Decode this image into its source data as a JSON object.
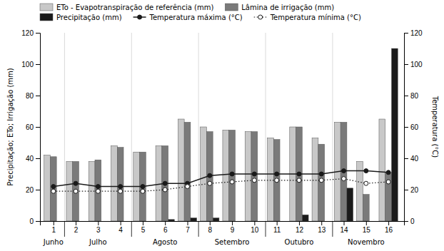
{
  "chart_data": {
    "type": "bar",
    "x": [
      1,
      2,
      3,
      4,
      5,
      6,
      7,
      8,
      9,
      10,
      11,
      12,
      13,
      14,
      15,
      16
    ],
    "xlim": [
      0.4,
      16.7
    ],
    "xticks": [
      1,
      2,
      3,
      4,
      5,
      6,
      7,
      8,
      9,
      10,
      11,
      12,
      13,
      14,
      15,
      16
    ],
    "ylabel": "Precipitação; ETo; Irrigação (mm)",
    "y2label": "Temperatura (°C)",
    "ylim": [
      0,
      120
    ],
    "yticks": [
      0,
      20,
      40,
      60,
      80,
      100,
      120
    ],
    "y2lim": [
      0,
      120
    ],
    "y2ticks": [
      0,
      20,
      40,
      60,
      80,
      100,
      120
    ],
    "grid": false,
    "legend": "top",
    "series": [
      {
        "name": "ETo - Evapotranspiração de referência (mm)",
        "type": "bar",
        "color": "#c8c8c8",
        "values": [
          42,
          38,
          38,
          48,
          44,
          48,
          65,
          60,
          58,
          57,
          53,
          60,
          53,
          63,
          38,
          65
        ]
      },
      {
        "name": "Lâmina de irrigação (mm)",
        "type": "bar",
        "color": "#7a7a7a",
        "values": [
          41,
          38,
          39,
          47,
          44,
          48,
          63,
          57,
          58,
          57,
          52,
          60,
          49,
          63,
          17,
          31
        ]
      },
      {
        "name": "Precipitação (mm)",
        "type": "bar",
        "color": "#1a1a1a",
        "values": [
          0,
          0,
          0,
          0,
          0,
          1,
          2,
          2,
          0,
          0,
          0,
          4,
          0,
          21,
          0,
          110
        ]
      },
      {
        "name": "Temperatura máxima (°C)",
        "type": "line",
        "axis": "y2",
        "color": "#1a1a1a",
        "marker": "filled-circle",
        "line_style": "solid",
        "values": [
          22,
          24,
          22,
          22,
          22,
          24,
          24,
          29,
          30,
          30,
          30,
          30,
          30,
          32,
          32,
          31
        ]
      },
      {
        "name": "Temperatura mínima (°C)",
        "type": "line",
        "axis": "y2",
        "color": "#1a1a1a",
        "marker": "open-circle",
        "line_style": "dotted",
        "values": [
          19,
          19,
          19,
          19,
          19,
          20,
          22,
          24,
          25,
          26,
          26,
          26,
          26,
          27,
          24,
          25
        ]
      }
    ],
    "month_boundaries": [
      1.5,
      4.5,
      7.5,
      10.5,
      13.5
    ],
    "annotations": [
      {
        "text": "Junho",
        "x": 1
      },
      {
        "text": "Julho",
        "x": 3
      },
      {
        "text": "Agosto",
        "x": 6
      },
      {
        "text": "Setembro",
        "x": 9
      },
      {
        "text": "Outubro",
        "x": 12
      },
      {
        "text": "Novembro",
        "x": 15
      }
    ]
  }
}
